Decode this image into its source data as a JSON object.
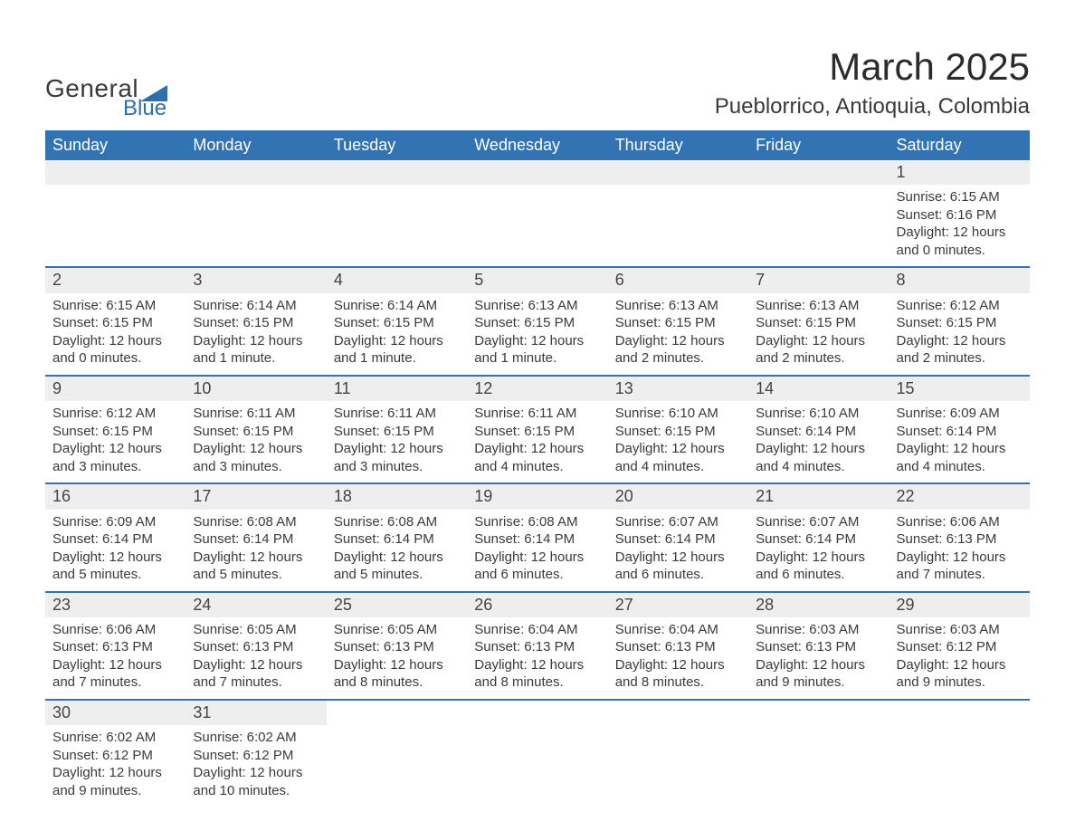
{
  "logo": {
    "text_general": "General",
    "text_blue": "Blue",
    "icon_color": "#2f6fa7"
  },
  "title": "March 2025",
  "location": "Pueblorrico, Antioquia, Colombia",
  "header_bg": "#3173b3",
  "header_fg": "#ffffff",
  "stripe_bg": "#eeeeee",
  "border_color": "#3173b3",
  "text_color": "#3a3a3a",
  "day_headers": [
    "Sunday",
    "Monday",
    "Tuesday",
    "Wednesday",
    "Thursday",
    "Friday",
    "Saturday"
  ],
  "weeks": [
    [
      null,
      null,
      null,
      null,
      null,
      null,
      {
        "n": "1",
        "sr": "6:15 AM",
        "ss": "6:16 PM",
        "dl": "12 hours and 0 minutes."
      }
    ],
    [
      {
        "n": "2",
        "sr": "6:15 AM",
        "ss": "6:15 PM",
        "dl": "12 hours and 0 minutes."
      },
      {
        "n": "3",
        "sr": "6:14 AM",
        "ss": "6:15 PM",
        "dl": "12 hours and 1 minute."
      },
      {
        "n": "4",
        "sr": "6:14 AM",
        "ss": "6:15 PM",
        "dl": "12 hours and 1 minute."
      },
      {
        "n": "5",
        "sr": "6:13 AM",
        "ss": "6:15 PM",
        "dl": "12 hours and 1 minute."
      },
      {
        "n": "6",
        "sr": "6:13 AM",
        "ss": "6:15 PM",
        "dl": "12 hours and 2 minutes."
      },
      {
        "n": "7",
        "sr": "6:13 AM",
        "ss": "6:15 PM",
        "dl": "12 hours and 2 minutes."
      },
      {
        "n": "8",
        "sr": "6:12 AM",
        "ss": "6:15 PM",
        "dl": "12 hours and 2 minutes."
      }
    ],
    [
      {
        "n": "9",
        "sr": "6:12 AM",
        "ss": "6:15 PM",
        "dl": "12 hours and 3 minutes."
      },
      {
        "n": "10",
        "sr": "6:11 AM",
        "ss": "6:15 PM",
        "dl": "12 hours and 3 minutes."
      },
      {
        "n": "11",
        "sr": "6:11 AM",
        "ss": "6:15 PM",
        "dl": "12 hours and 3 minutes."
      },
      {
        "n": "12",
        "sr": "6:11 AM",
        "ss": "6:15 PM",
        "dl": "12 hours and 4 minutes."
      },
      {
        "n": "13",
        "sr": "6:10 AM",
        "ss": "6:15 PM",
        "dl": "12 hours and 4 minutes."
      },
      {
        "n": "14",
        "sr": "6:10 AM",
        "ss": "6:14 PM",
        "dl": "12 hours and 4 minutes."
      },
      {
        "n": "15",
        "sr": "6:09 AM",
        "ss": "6:14 PM",
        "dl": "12 hours and 4 minutes."
      }
    ],
    [
      {
        "n": "16",
        "sr": "6:09 AM",
        "ss": "6:14 PM",
        "dl": "12 hours and 5 minutes."
      },
      {
        "n": "17",
        "sr": "6:08 AM",
        "ss": "6:14 PM",
        "dl": "12 hours and 5 minutes."
      },
      {
        "n": "18",
        "sr": "6:08 AM",
        "ss": "6:14 PM",
        "dl": "12 hours and 5 minutes."
      },
      {
        "n": "19",
        "sr": "6:08 AM",
        "ss": "6:14 PM",
        "dl": "12 hours and 6 minutes."
      },
      {
        "n": "20",
        "sr": "6:07 AM",
        "ss": "6:14 PM",
        "dl": "12 hours and 6 minutes."
      },
      {
        "n": "21",
        "sr": "6:07 AM",
        "ss": "6:14 PM",
        "dl": "12 hours and 6 minutes."
      },
      {
        "n": "22",
        "sr": "6:06 AM",
        "ss": "6:13 PM",
        "dl": "12 hours and 7 minutes."
      }
    ],
    [
      {
        "n": "23",
        "sr": "6:06 AM",
        "ss": "6:13 PM",
        "dl": "12 hours and 7 minutes."
      },
      {
        "n": "24",
        "sr": "6:05 AM",
        "ss": "6:13 PM",
        "dl": "12 hours and 7 minutes."
      },
      {
        "n": "25",
        "sr": "6:05 AM",
        "ss": "6:13 PM",
        "dl": "12 hours and 8 minutes."
      },
      {
        "n": "26",
        "sr": "6:04 AM",
        "ss": "6:13 PM",
        "dl": "12 hours and 8 minutes."
      },
      {
        "n": "27",
        "sr": "6:04 AM",
        "ss": "6:13 PM",
        "dl": "12 hours and 8 minutes."
      },
      {
        "n": "28",
        "sr": "6:03 AM",
        "ss": "6:13 PM",
        "dl": "12 hours and 9 minutes."
      },
      {
        "n": "29",
        "sr": "6:03 AM",
        "ss": "6:12 PM",
        "dl": "12 hours and 9 minutes."
      }
    ],
    [
      {
        "n": "30",
        "sr": "6:02 AM",
        "ss": "6:12 PM",
        "dl": "12 hours and 9 minutes."
      },
      {
        "n": "31",
        "sr": "6:02 AM",
        "ss": "6:12 PM",
        "dl": "12 hours and 10 minutes."
      },
      null,
      null,
      null,
      null,
      null
    ]
  ],
  "labels": {
    "sunrise": "Sunrise: ",
    "sunset": "Sunset: ",
    "daylight": "Daylight: "
  }
}
